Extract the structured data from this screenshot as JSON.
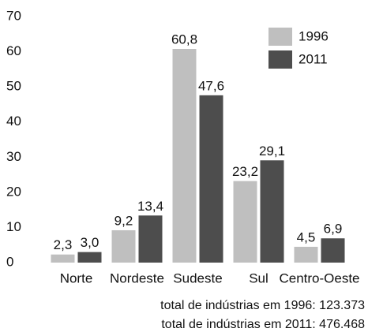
{
  "chart_data": {
    "type": "bar",
    "categories": [
      "Norte",
      "Nordeste",
      "Sudeste",
      "Sul",
      "Centro-Oeste"
    ],
    "series": [
      {
        "name": "1996",
        "color": "#bfbfbf",
        "values": [
          2.3,
          9.2,
          60.8,
          23.2,
          4.5
        ],
        "value_labels": [
          "2,3",
          "9,2",
          "60,8",
          "23,2",
          "4,5"
        ]
      },
      {
        "name": "2011",
        "color": "#4d4d4d",
        "values": [
          3.0,
          13.4,
          47.6,
          29.1,
          6.9
        ],
        "value_labels": [
          "3,0",
          "13,4",
          "47,6",
          "29,1",
          "6,9"
        ]
      }
    ],
    "ylim": [
      0,
      70
    ],
    "yticks": [
      0,
      10,
      20,
      30,
      40,
      50,
      60,
      70
    ],
    "grid": false,
    "legend": "upper right",
    "annotations": [
      "total de indústrias em 1996: 123.373",
      "total de indústrias em 2011: 476.468"
    ]
  }
}
